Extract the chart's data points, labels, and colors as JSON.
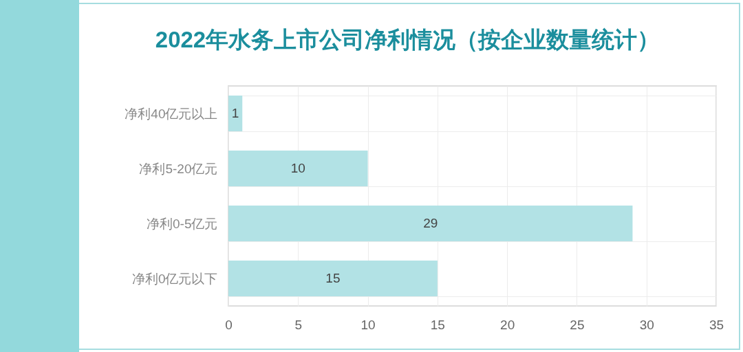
{
  "chart_data": {
    "type": "bar",
    "title": "2022年水务上市公司净利情况（按企业数量统计）",
    "orientation": "horizontal",
    "categories": [
      "净利40亿元以上",
      "净利5-20亿元",
      "净利0-5亿元",
      "净利0亿元以下"
    ],
    "values": [
      1,
      10,
      29,
      15
    ],
    "color": "#b2e2e5",
    "xlim": [
      0,
      35
    ],
    "xticks": [
      0,
      5,
      10,
      15,
      20,
      25,
      30,
      35
    ],
    "grid": true,
    "data_labels": true
  }
}
